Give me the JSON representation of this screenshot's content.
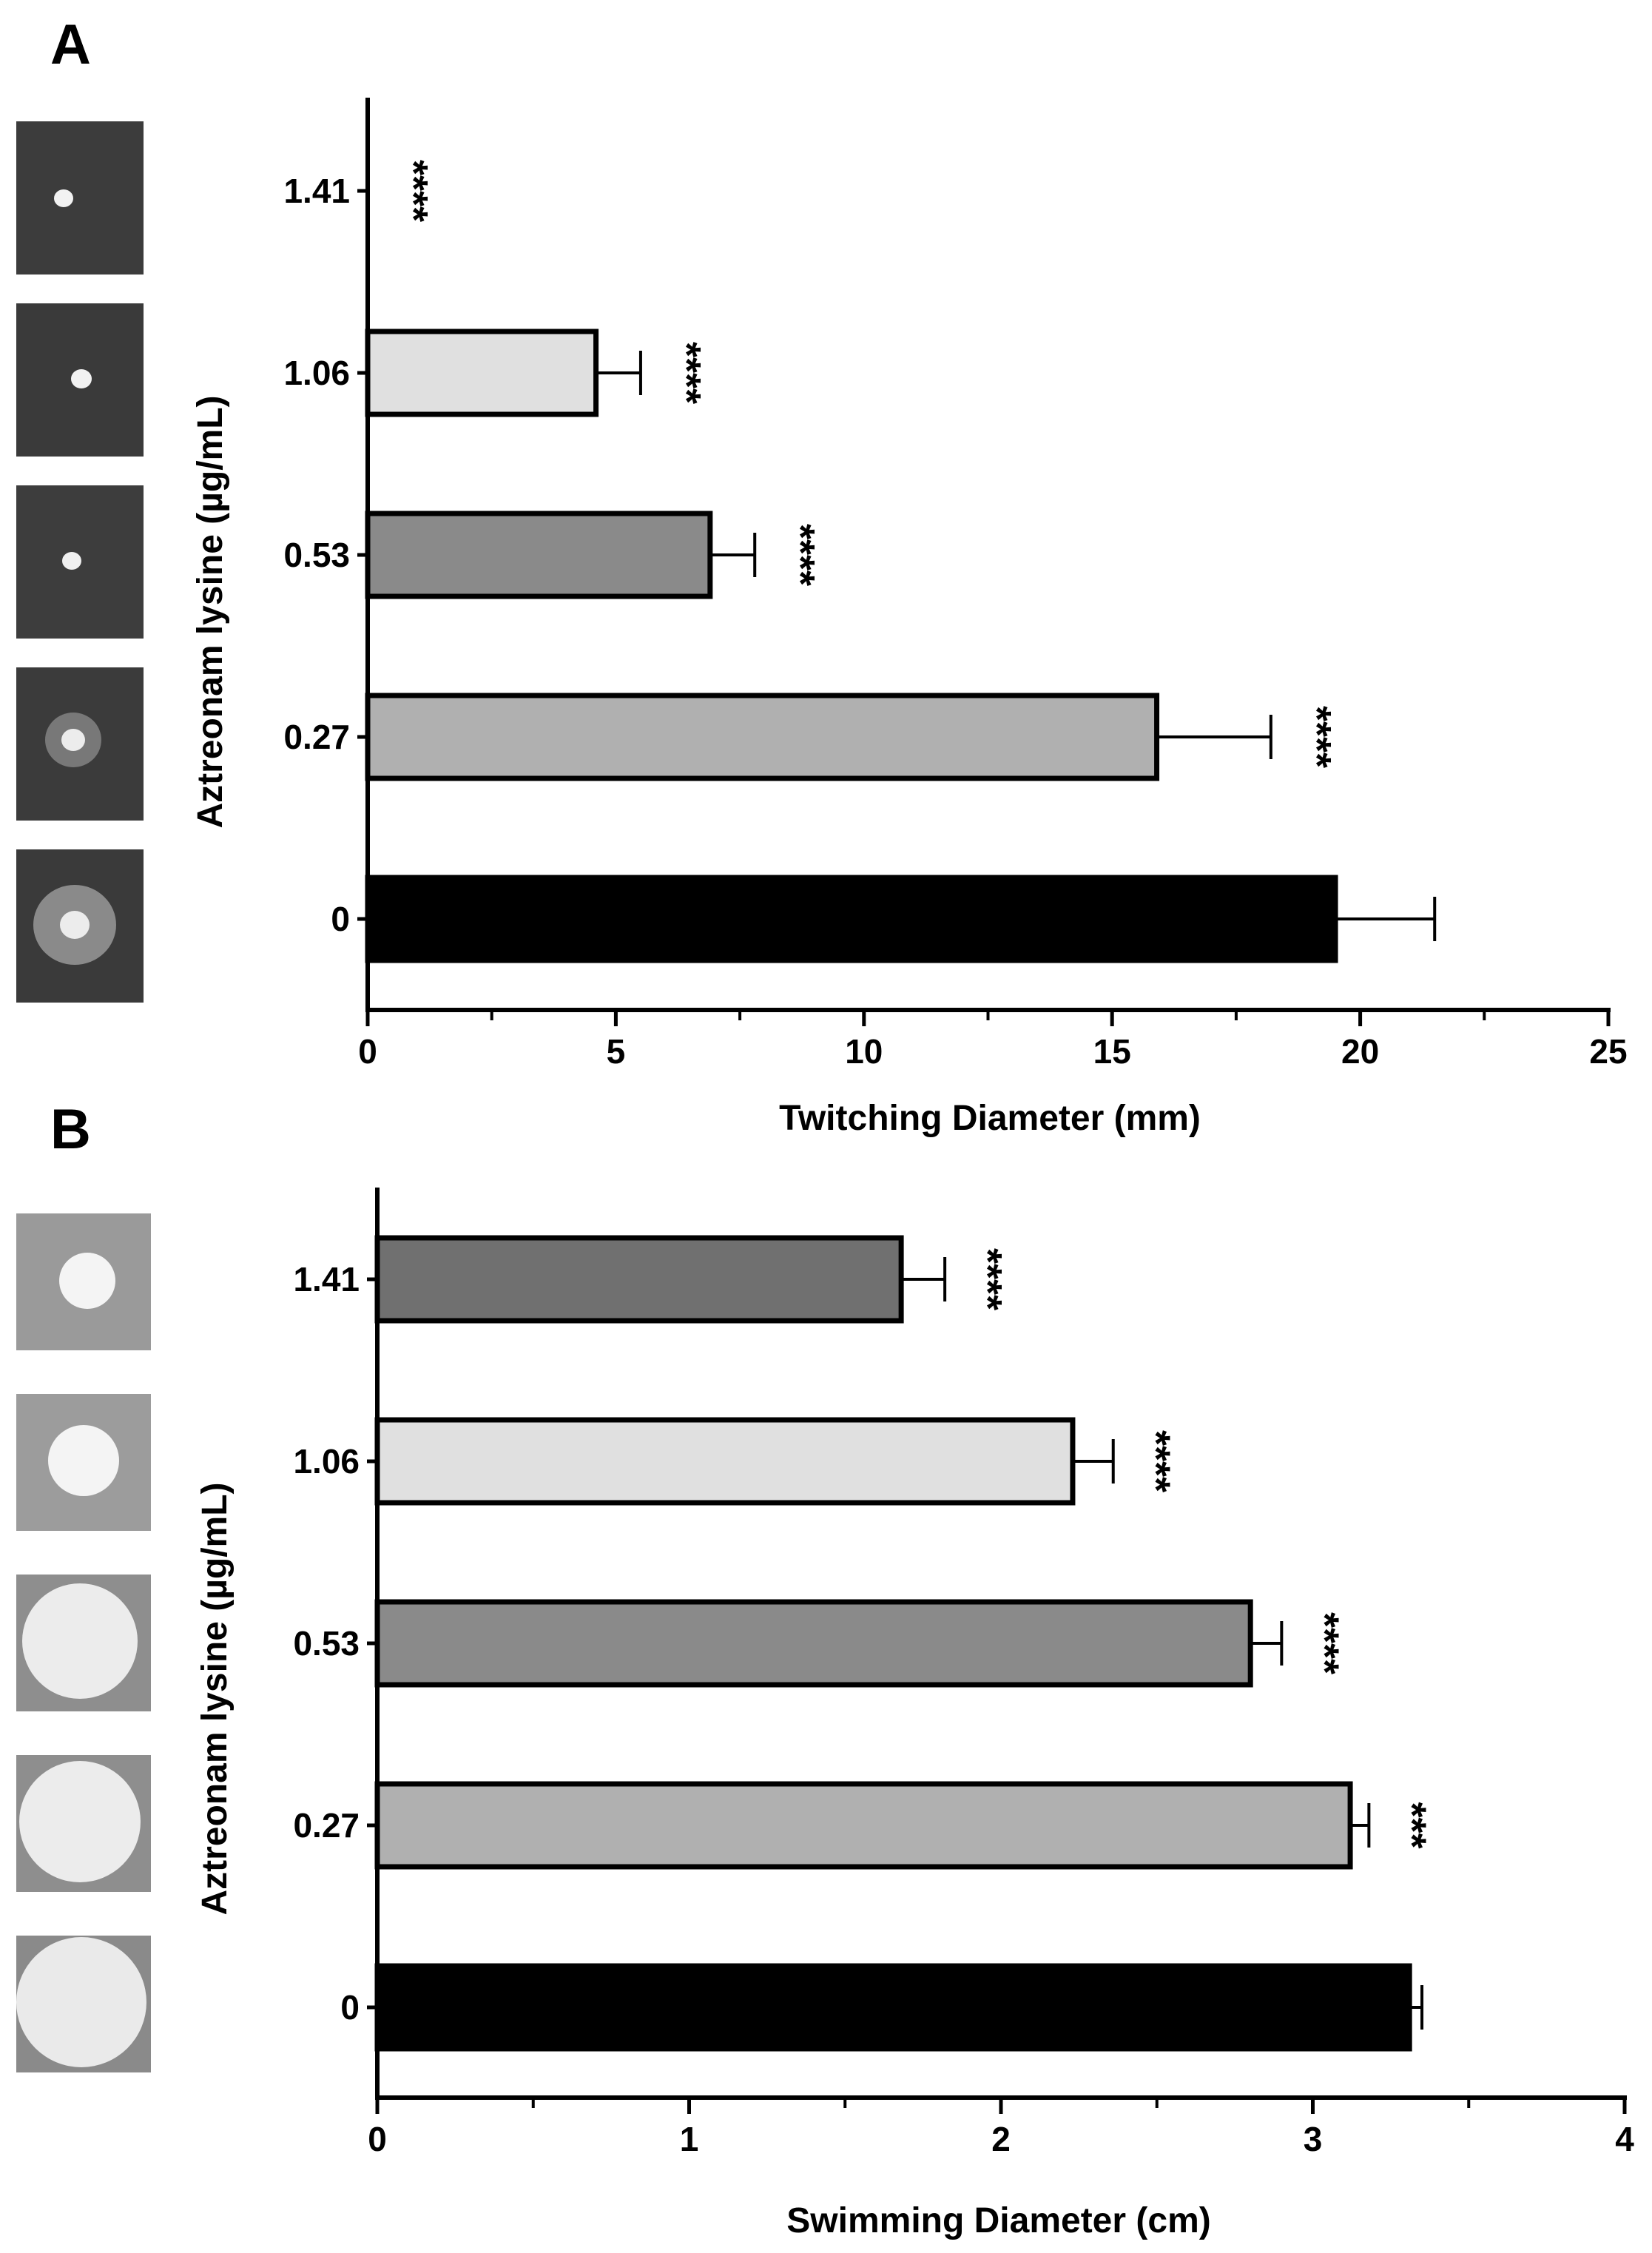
{
  "chart_data": [
    {
      "panel": "A",
      "type": "bar",
      "orientation": "horizontal",
      "title": "",
      "xlabel": "Twitching Diameter (mm)",
      "ylabel": "Aztreonam lysine (µg/mL)",
      "xlim": [
        0,
        25
      ],
      "x_ticks": [
        "0",
        "5",
        "10",
        "15",
        "20",
        "25"
      ],
      "categories": [
        "1.41",
        "1.06",
        "0.53",
        "0.27",
        "0"
      ],
      "values": [
        0,
        4.6,
        6.9,
        15.9,
        19.5
      ],
      "errors": [
        0,
        0.9,
        0.9,
        2.3,
        2.0
      ],
      "significance": [
        "****",
        "****",
        "****",
        "****",
        ""
      ],
      "bar_colors": [
        "#ffffff",
        "#e0e0e0",
        "#8a8a8a",
        "#b0b0b0",
        "#000000"
      ],
      "grid": false,
      "legend": "none"
    },
    {
      "panel": "B",
      "type": "bar",
      "orientation": "horizontal",
      "title": "",
      "xlabel": "Swimming Diameter (cm)",
      "ylabel": "Aztreonam lysine (µg/mL)",
      "xlim": [
        0,
        4
      ],
      "x_ticks": [
        "0",
        "1",
        "2",
        "3",
        "4"
      ],
      "categories": [
        "1.41",
        "1.06",
        "0.53",
        "0.27",
        "0"
      ],
      "values": [
        1.68,
        2.23,
        2.8,
        3.12,
        3.31
      ],
      "errors": [
        0.14,
        0.13,
        0.1,
        0.06,
        0.04
      ],
      "significance": [
        "****",
        "****",
        "****",
        "***",
        ""
      ],
      "bar_colors": [
        "#707070",
        "#e0e0e0",
        "#8a8a8a",
        "#b0b0b0",
        "#000000"
      ],
      "grid": false,
      "legend": "none"
    }
  ]
}
